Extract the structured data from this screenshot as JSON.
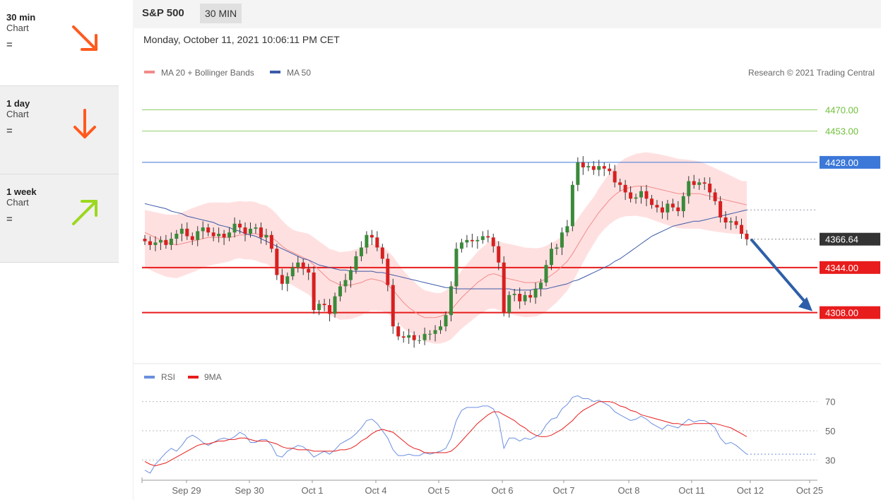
{
  "sidebar": {
    "items": [
      {
        "label": "30 min",
        "sub": "Chart",
        "signal": "=",
        "arrow": "down-right",
        "color": "#ff5a1f"
      },
      {
        "label": "1 day",
        "sub": "Chart",
        "signal": "=",
        "arrow": "down",
        "color": "#ff5a1f"
      },
      {
        "label": "1 week",
        "sub": "Chart",
        "signal": "=",
        "arrow": "up-right",
        "color": "#9cd81f"
      }
    ]
  },
  "header": {
    "symbol": "S&P 500",
    "interval": "30 MIN"
  },
  "datetime": "Monday, October 11, 2021 10:06:11 PM CET",
  "credit": "Research © 2021 Trading Central",
  "colors": {
    "ma20": "#f28b8b",
    "ma50": "#3c5aa8",
    "band": "#ffe0e0",
    "up": "#3a8a3a",
    "down": "#d62020",
    "resistance": "#8fce6a",
    "pivot": "#3b78d8",
    "support": "#e81c1c",
    "rsi": "#6b8fe0",
    "rsi_ma": "#e81c1c",
    "arrow": "#2e5fa8"
  },
  "chart_data": [
    {
      "type": "candlestick",
      "title": "S&P 500",
      "legend": [
        "MA 20 + Bollinger Bands",
        "MA 50"
      ],
      "x_labels": [
        "Sep 29",
        "Sep 30",
        "Oct 1",
        "Oct 4",
        "Oct 5",
        "Oct 6",
        "Oct 7",
        "Oct 8",
        "Oct 11",
        "Oct 12",
        "Oct 25"
      ],
      "ylim": [
        4270,
        4490
      ],
      "levels": [
        {
          "value": 4470.0,
          "label": "4470.00",
          "kind": "resistance"
        },
        {
          "value": 4453.0,
          "label": "4453.00",
          "kind": "resistance"
        },
        {
          "value": 4428.0,
          "label": "4428.00",
          "kind": "pivot"
        },
        {
          "value": 4366.64,
          "label": "4366.64",
          "kind": "last"
        },
        {
          "value": 4344.0,
          "label": "4344.00",
          "kind": "support"
        },
        {
          "value": 4308.0,
          "label": "4308.00",
          "kind": "support"
        }
      ],
      "close": [
        4365,
        4362,
        4364,
        4366,
        4362,
        4367,
        4371,
        4375,
        4369,
        4366,
        4373,
        4376,
        4372,
        4369,
        4371,
        4368,
        4372,
        4379,
        4376,
        4371,
        4375,
        4376,
        4368,
        4370,
        4359,
        4338,
        4331,
        4337,
        4344,
        4348,
        4343,
        4340,
        4310,
        4315,
        4314,
        4307,
        4321,
        4329,
        4334,
        4342,
        4353,
        4360,
        4370,
        4368,
        4360,
        4351,
        4330,
        4297,
        4289,
        4288,
        4290,
        4286,
        4286,
        4291,
        4291,
        4294,
        4297,
        4306,
        4329,
        4359,
        4364,
        4366,
        4365,
        4366,
        4369,
        4368,
        4361,
        4348,
        4308,
        4322,
        4323,
        4317,
        4322,
        4320,
        4327,
        4332,
        4346,
        4359,
        4360,
        4372,
        4377,
        4410,
        4428,
        4424,
        4425,
        4422,
        4425,
        4423,
        4421,
        4412,
        4410,
        4404,
        4399,
        4400,
        4405,
        4399,
        4394,
        4392,
        4388,
        4395,
        4392,
        4389,
        4401,
        4413,
        4410,
        4412,
        4411,
        4404,
        4397,
        4384,
        4380,
        4381,
        4378,
        4371,
        4366.64
      ],
      "ma20": [
        4372,
        4370,
        4368,
        4366,
        4364,
        4363,
        4362,
        4363,
        4364,
        4365,
        4366,
        4367,
        4368,
        4368,
        4368,
        4368,
        4368,
        4369,
        4370,
        4370,
        4371,
        4371,
        4370,
        4370,
        4368,
        4365,
        4361,
        4358,
        4356,
        4354,
        4352,
        4350,
        4346,
        4342,
        4338,
        4334,
        4332,
        4330,
        4330,
        4330,
        4331,
        4332,
        4334,
        4335,
        4334,
        4333,
        4330,
        4326,
        4321,
        4316,
        4312,
        4309,
        4306,
        4304,
        4304,
        4304,
        4305,
        4307,
        4310,
        4315,
        4320,
        4324,
        4328,
        4332,
        4335,
        4338,
        4339,
        4338,
        4336,
        4335,
        4334,
        4333,
        4332,
        4332,
        4332,
        4333,
        4335,
        4338,
        4341,
        4345,
        4349,
        4355,
        4362,
        4369,
        4376,
        4382,
        4388,
        4393,
        4398,
        4402,
        4405,
        4407,
        4408,
        4409,
        4409,
        4409,
        4408,
        4407,
        4406,
        4405,
        4404,
        4403,
        4403,
        4403,
        4403,
        4403,
        4402,
        4401,
        4400,
        4399,
        4398,
        4397,
        4396,
        4395,
        4394
      ],
      "ma50": [
        4395,
        4394,
        4393,
        4392,
        4391,
        4389,
        4388,
        4387,
        4385,
        4384,
        4383,
        4382,
        4381,
        4380,
        4378,
        4377,
        4376,
        4374,
        4373,
        4371,
        4370,
        4369,
        4367,
        4365,
        4363,
        4361,
        4359,
        4357,
        4355,
        4353,
        4351,
        4350,
        4348,
        4346,
        4345,
        4344,
        4343,
        4342,
        4342,
        4341,
        4341,
        4341,
        4341,
        4341,
        4340,
        4340,
        4339,
        4338,
        4337,
        4336,
        4335,
        4334,
        4333,
        4332,
        4331,
        4330,
        4329,
        4328,
        4328,
        4327,
        4327,
        4327,
        4327,
        4327,
        4327,
        4327,
        4327,
        4327,
        4327,
        4327,
        4326,
        4326,
        4326,
        4326,
        4327,
        4327,
        4327,
        4328,
        4329,
        4330,
        4331,
        4333,
        4334,
        4336,
        4338,
        4340,
        4342,
        4344,
        4346,
        4349,
        4351,
        4354,
        4357,
        4360,
        4363,
        4366,
        4369,
        4371,
        4373,
        4375,
        4377,
        4378,
        4379,
        4380,
        4381,
        4381,
        4382,
        4383,
        4384,
        4385,
        4386,
        4387,
        4388,
        4389,
        4390
      ],
      "forecast": {
        "from": 4366.64,
        "to": 4308.0
      }
    },
    {
      "type": "line",
      "legend": [
        "RSI",
        "9MA"
      ],
      "ylim": [
        20,
        80
      ],
      "yticks": [
        70,
        50,
        30
      ],
      "rsi": [
        23,
        21,
        27,
        31,
        35,
        38,
        36,
        40,
        45,
        47,
        45,
        42,
        40,
        42,
        44,
        45,
        44,
        46,
        49,
        47,
        42,
        42,
        44,
        44,
        40,
        33,
        32,
        36,
        38,
        40,
        39,
        36,
        32,
        34,
        36,
        34,
        37,
        41,
        43,
        45,
        48,
        52,
        57,
        58,
        55,
        50,
        45,
        37,
        33,
        33,
        34,
        33,
        33,
        35,
        34,
        35,
        36,
        38,
        45,
        57,
        64,
        66,
        66,
        66,
        67,
        67,
        65,
        58,
        38,
        45,
        45,
        43,
        45,
        44,
        46,
        48,
        54,
        58,
        59,
        65,
        68,
        73,
        74,
        72,
        72,
        70,
        71,
        69,
        67,
        63,
        61,
        59,
        57,
        58,
        60,
        58,
        55,
        53,
        51,
        54,
        53,
        52,
        55,
        58,
        56,
        57,
        57,
        55,
        52,
        45,
        41,
        42,
        40,
        37,
        34
      ],
      "rsi_ma": [
        29,
        27,
        26,
        27,
        28,
        30,
        32,
        34,
        36,
        38,
        40,
        41,
        41,
        42,
        43,
        43,
        44,
        44,
        45,
        45,
        44,
        43,
        43,
        43,
        42,
        41,
        39,
        38,
        38,
        37,
        37,
        37,
        36,
        36,
        36,
        36,
        36,
        37,
        37,
        38,
        40,
        43,
        45,
        48,
        50,
        51,
        50,
        49,
        46,
        43,
        40,
        38,
        37,
        35,
        35,
        35,
        35,
        35,
        36,
        39,
        43,
        47,
        51,
        55,
        58,
        61,
        63,
        63,
        61,
        59,
        57,
        54,
        52,
        49,
        47,
        46,
        46,
        47,
        49,
        51,
        54,
        57,
        61,
        64,
        66,
        68,
        70,
        70,
        70,
        69,
        67,
        66,
        64,
        63,
        61,
        60,
        59,
        58,
        57,
        56,
        55,
        55,
        54,
        54,
        55,
        55,
        55,
        55,
        55,
        54,
        53,
        52,
        50,
        48,
        46
      ]
    }
  ]
}
